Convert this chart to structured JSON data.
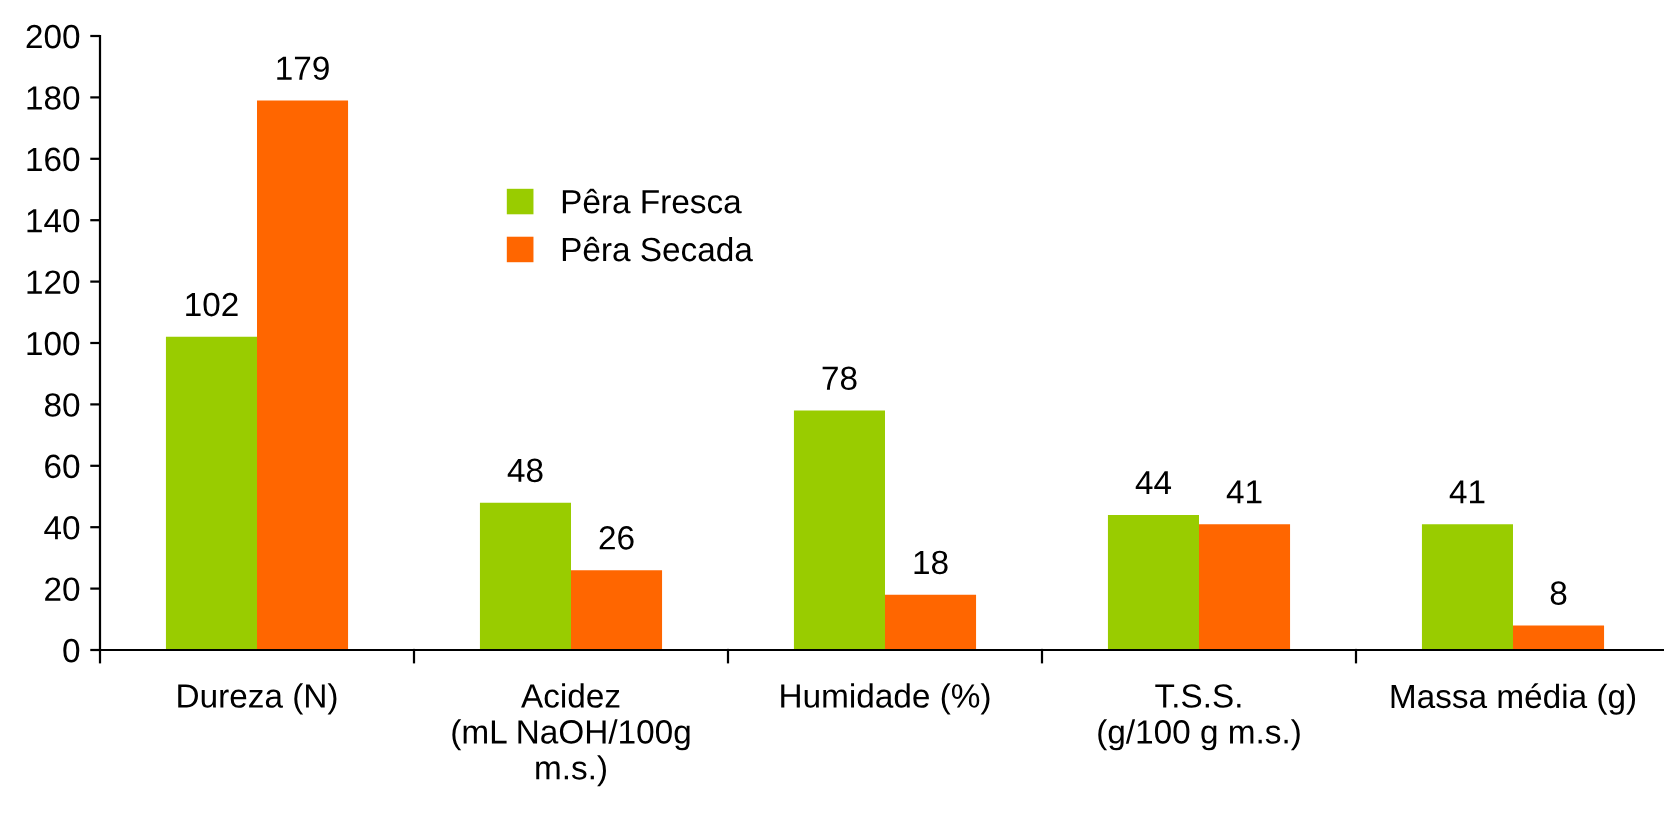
{
  "chart_data": {
    "type": "bar",
    "categories": [
      "Dureza (N)",
      "Acidez\n(mL NaOH/100g\nm.s.)",
      "Humidade (%)",
      "T.S.S.\n(g/100 g m.s.)",
      "Massa média (g)"
    ],
    "series": [
      {
        "name": "Pêra Fresca",
        "color": "#99cc00",
        "values": [
          102,
          48,
          78,
          44,
          41
        ]
      },
      {
        "name": "Pêra Secada",
        "color": "#ff6600",
        "values": [
          179,
          26,
          18,
          41,
          8
        ]
      }
    ],
    "ylim": [
      0,
      200
    ],
    "yticks": [
      0,
      20,
      40,
      60,
      80,
      100,
      120,
      140,
      160,
      180,
      200
    ],
    "data_labels": true,
    "legend": "top left",
    "grid": false
  }
}
